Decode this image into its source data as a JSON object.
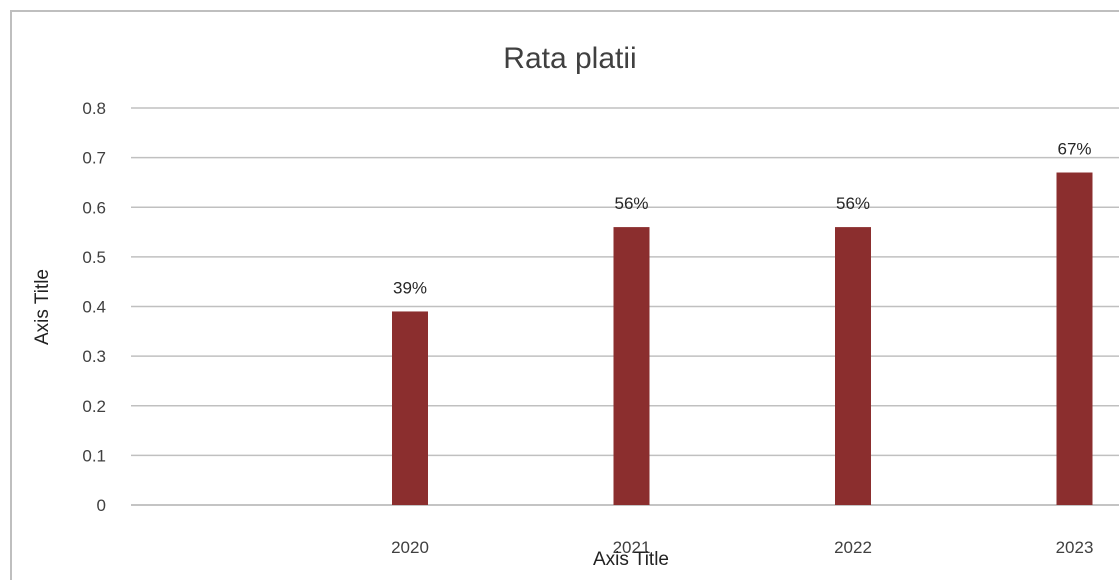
{
  "chart_data": {
    "type": "bar",
    "title": "Rata platii",
    "xlabel": "Axis Title",
    "ylabel": "Axis Title",
    "categories": [
      "",
      "2020",
      "2021",
      "2022",
      "2023"
    ],
    "values": [
      null,
      0.39,
      0.56,
      0.56,
      0.67
    ],
    "data_labels": [
      "",
      "39%",
      "56%",
      "56%",
      "67%"
    ],
    "ylim": [
      0,
      0.8
    ],
    "yticks": [
      "0",
      "0.1",
      "0.2",
      "0.3",
      "0.4",
      "0.5",
      "0.6",
      "0.7",
      "0.8"
    ],
    "grid": true,
    "legend": "none",
    "colors": {
      "bar": "#8b2e2e",
      "grid": "#c0c0c0",
      "text": "#404040"
    }
  }
}
